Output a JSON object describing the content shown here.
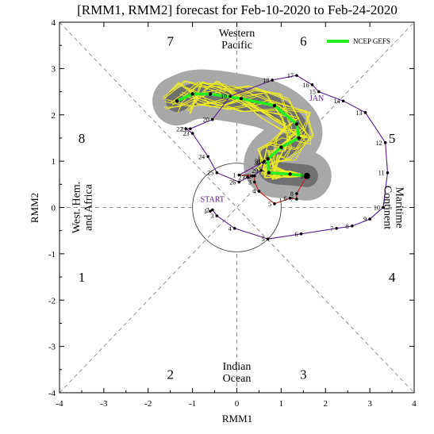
{
  "chart_data": {
    "type": "line",
    "title": "[RMM1, RMM2] forecast for Feb-10-2020 to Feb-24-2020",
    "xlabel": "RMM1",
    "ylabel": "RMM2",
    "xlim": [
      -4,
      4
    ],
    "ylim": [
      -4,
      4
    ],
    "x_ticks": [
      "-4",
      "-3",
      "-2",
      "-1",
      "0",
      "1",
      "2",
      "3",
      "4"
    ],
    "y_ticks": [
      "-4",
      "-3",
      "-2",
      "-1",
      "0",
      "1",
      "2",
      "3",
      "4"
    ],
    "grid": false,
    "legend": {
      "position": "top-right",
      "entries": [
        {
          "label": "NCEP GEFS",
          "color": "#22ee22"
        }
      ]
    },
    "phases": [
      {
        "label": "1",
        "x": -3.5,
        "y": -1.5
      },
      {
        "label": "2",
        "x": -1.5,
        "y": -3.6
      },
      {
        "label": "3",
        "x": 1.5,
        "y": -3.6
      },
      {
        "label": "4",
        "x": 3.5,
        "y": -1.5
      },
      {
        "label": "5",
        "x": 3.5,
        "y": 1.5
      },
      {
        "label": "6",
        "x": 1.5,
        "y": 3.6
      },
      {
        "label": "7",
        "x": -1.5,
        "y": 3.6
      },
      {
        "label": "8",
        "x": -3.5,
        "y": 1.5
      }
    ],
    "regions": [
      {
        "text": [
          "Western",
          "Pacific"
        ],
        "x": 0,
        "y": 3.65,
        "rotate": 0
      },
      {
        "text": [
          "Indian",
          "Ocean"
        ],
        "x": 0,
        "y": -3.55,
        "rotate": 0
      },
      {
        "text": [
          "West. Hem.",
          "and Africa"
        ],
        "x": -3.5,
        "y": 0,
        "rotate": -90
      },
      {
        "text": [
          "Maritime",
          "Continent"
        ],
        "x": 3.55,
        "y": 0,
        "rotate": 90
      }
    ],
    "month_labels": [
      {
        "text": "START",
        "x": -0.55,
        "y": 0.12
      },
      {
        "text": "JAN",
        "x": 1.8,
        "y": 2.3
      }
    ],
    "colors": {
      "observed": "#5a1e8a",
      "forecast_path": "#c02020",
      "envelope": "#a8a8a8",
      "inner_envelope": "#707070",
      "members": "#eeee22",
      "mean": "#22ee22"
    },
    "series": [
      {
        "points": [
          {
            "label": "1",
            "x": -0.6,
            "y": -0.08
          },
          {
            "label": "2",
            "x": -0.55,
            "y": -0.05
          },
          {
            "label": "3",
            "x": -0.45,
            "y": -0.18
          },
          {
            "label": "4",
            "x": -0.05,
            "y": -0.45
          },
          {
            "label": "5",
            "x": 0.7,
            "y": -0.68
          },
          {
            "label": "6",
            "x": 1.45,
            "y": -0.57
          },
          {
            "label": "7",
            "x": 2.25,
            "y": -0.45
          },
          {
            "label": "8",
            "x": 2.6,
            "y": -0.4
          },
          {
            "label": "9",
            "x": 3.0,
            "y": -0.25
          },
          {
            "label": "10",
            "x": 3.3,
            "y": 0.0
          },
          {
            "label": "11",
            "x": 3.4,
            "y": 0.75
          },
          {
            "label": "12",
            "x": 3.35,
            "y": 1.4
          },
          {
            "label": "13",
            "x": 2.9,
            "y": 2.05
          },
          {
            "label": "14",
            "x": 2.4,
            "y": 2.3
          },
          {
            "label": "15",
            "x": 1.85,
            "y": 2.5
          },
          {
            "label": "16",
            "x": 1.7,
            "y": 2.65
          },
          {
            "label": "17",
            "x": 1.35,
            "y": 2.85
          },
          {
            "label": "18",
            "x": 0.8,
            "y": 2.75
          },
          {
            "label": "19",
            "x": -0.15,
            "y": 2.4
          },
          {
            "label": "20",
            "x": -0.55,
            "y": 1.9
          },
          {
            "label": "21",
            "x": -1.05,
            "y": 1.7
          },
          {
            "label": "22",
            "x": -1.15,
            "y": 1.7
          },
          {
            "label": "23",
            "x": -1.0,
            "y": 1.6
          },
          {
            "label": "24",
            "x": -0.65,
            "y": 1.1
          },
          {
            "label": "25",
            "x": -0.45,
            "y": 0.75
          },
          {
            "label": "26",
            "x": 0.05,
            "y": 0.55
          },
          {
            "label": "27",
            "x": 0.25,
            "y": 0.65
          },
          {
            "label": "28",
            "x": 0.35,
            "y": 0.68
          },
          {
            "label": "29",
            "x": 0.55,
            "y": 0.8
          },
          {
            "label": "30",
            "x": 0.6,
            "y": 0.97
          },
          {
            "label": "31",
            "x": 0.62,
            "y": 1.0
          },
          {
            "label": "1",
            "x": 0.05,
            "y": 0.7
          },
          {
            "label": "2",
            "x": 0.4,
            "y": 0.68
          },
          {
            "label": "3",
            "x": 0.4,
            "y": 0.55
          },
          {
            "label": "4",
            "x": 0.5,
            "y": 0.35
          },
          {
            "label": "5",
            "x": 0.85,
            "y": 0.08
          },
          {
            "label": "6",
            "x": 1.2,
            "y": 0.2
          },
          {
            "label": "7",
            "x": 1.35,
            "y": 0.18
          },
          {
            "label": "8",
            "x": 1.35,
            "y": 0.3
          },
          {
            "label": "9",
            "x": 1.58,
            "y": 0.68
          }
        ]
      },
      {
        "name": "NCEP GEFS",
        "points": [
          {
            "label": "",
            "x": 1.58,
            "y": 0.68
          },
          {
            "label": "",
            "x": 1.2,
            "y": 0.72
          },
          {
            "label": "",
            "x": 0.72,
            "y": 0.75
          },
          {
            "label": "",
            "x": 0.7,
            "y": 1.05
          },
          {
            "label": "",
            "x": 1.0,
            "y": 1.3
          },
          {
            "label": "",
            "x": 1.4,
            "y": 1.5
          },
          {
            "label": "",
            "x": 1.35,
            "y": 1.8
          },
          {
            "label": "",
            "x": 0.85,
            "y": 2.2
          },
          {
            "label": "",
            "x": 0.1,
            "y": 2.35
          },
          {
            "label": "",
            "x": -0.6,
            "y": 2.45
          },
          {
            "label": "",
            "x": -1.0,
            "y": 2.45
          },
          {
            "label": "",
            "x": -1.35,
            "y": 2.3
          }
        ]
      }
    ]
  }
}
